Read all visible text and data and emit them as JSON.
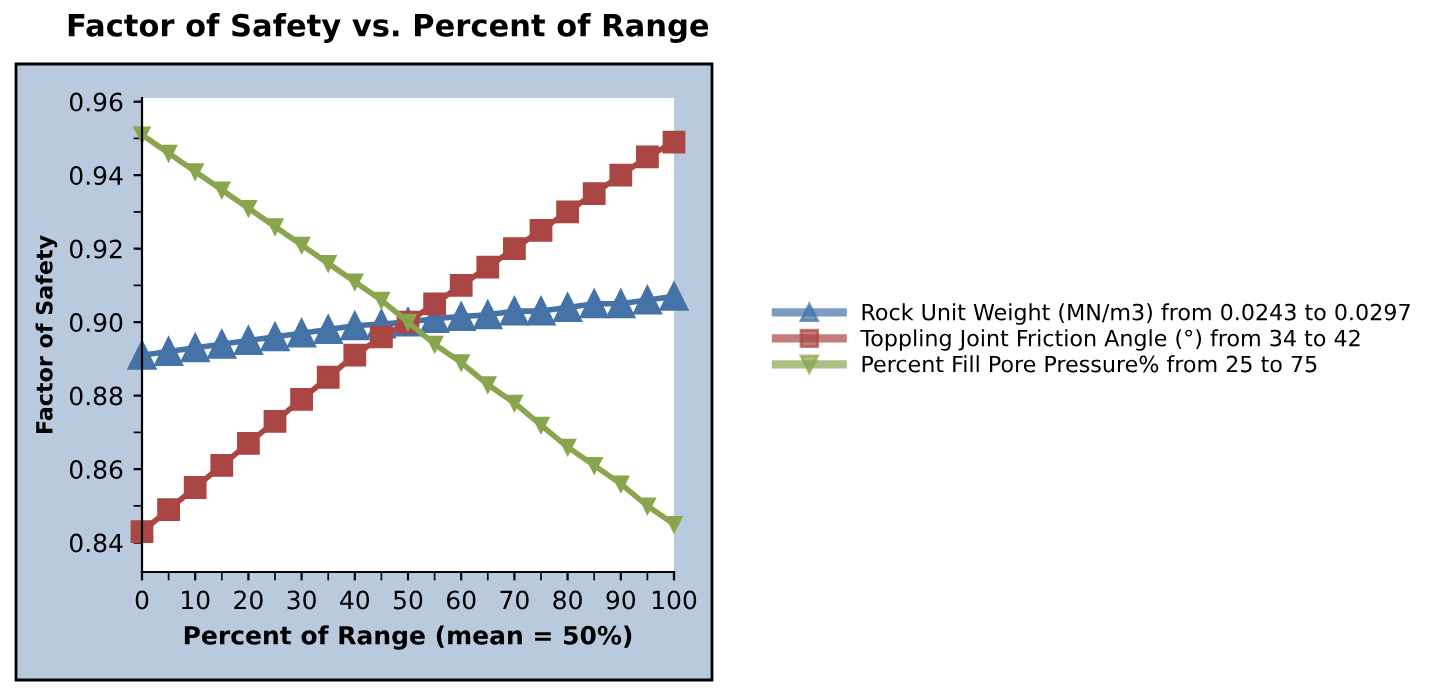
{
  "chart_data": {
    "type": "line",
    "title": "Factor of Safety vs. Percent of Range",
    "xlabel": "Percent of Range (mean = 50%)",
    "ylabel": "Factor of Safety",
    "x": [
      0,
      5,
      10,
      15,
      20,
      25,
      30,
      35,
      40,
      45,
      50,
      55,
      60,
      65,
      70,
      75,
      80,
      85,
      90,
      95,
      100
    ],
    "series": [
      {
        "name": "Rock Unit Weight (MN/m3) from 0.0243 to 0.0297",
        "color": "#4572a7",
        "marker": "triangle",
        "values": [
          0.891,
          0.892,
          0.893,
          0.894,
          0.895,
          0.896,
          0.897,
          0.898,
          0.899,
          0.8995,
          0.9,
          0.901,
          0.9015,
          0.902,
          0.903,
          0.903,
          0.904,
          0.905,
          0.905,
          0.906,
          0.907
        ]
      },
      {
        "name": "Toppling Joint Friction Angle (°) from 34 to 42",
        "color": "#aa4643",
        "marker": "square",
        "values": [
          0.843,
          0.849,
          0.855,
          0.861,
          0.867,
          0.873,
          0.879,
          0.885,
          0.891,
          0.896,
          0.9,
          0.905,
          0.91,
          0.915,
          0.92,
          0.925,
          0.93,
          0.935,
          0.94,
          0.945,
          0.949
        ]
      },
      {
        "name": "Percent Fill Pore Pressure% from 25 to 75",
        "color": "#89a54e",
        "marker": "triangle_down",
        "values": [
          0.951,
          0.946,
          0.941,
          0.936,
          0.931,
          0.926,
          0.921,
          0.916,
          0.911,
          0.906,
          0.9,
          0.894,
          0.889,
          0.883,
          0.878,
          0.872,
          0.866,
          0.861,
          0.856,
          0.85,
          0.845
        ]
      }
    ],
    "xlim": [
      0,
      100
    ],
    "ylim": [
      0.832,
      0.961
    ],
    "xticks": [
      0,
      10,
      20,
      30,
      40,
      50,
      60,
      70,
      80,
      90,
      100
    ],
    "yticks": [
      0.84,
      0.86,
      0.88,
      {
        "value": 0.9,
        "label": "0.90"
      },
      0.92,
      0.94,
      0.96
    ],
    "grid": false,
    "legend": "right",
    "line_style": "solid"
  }
}
